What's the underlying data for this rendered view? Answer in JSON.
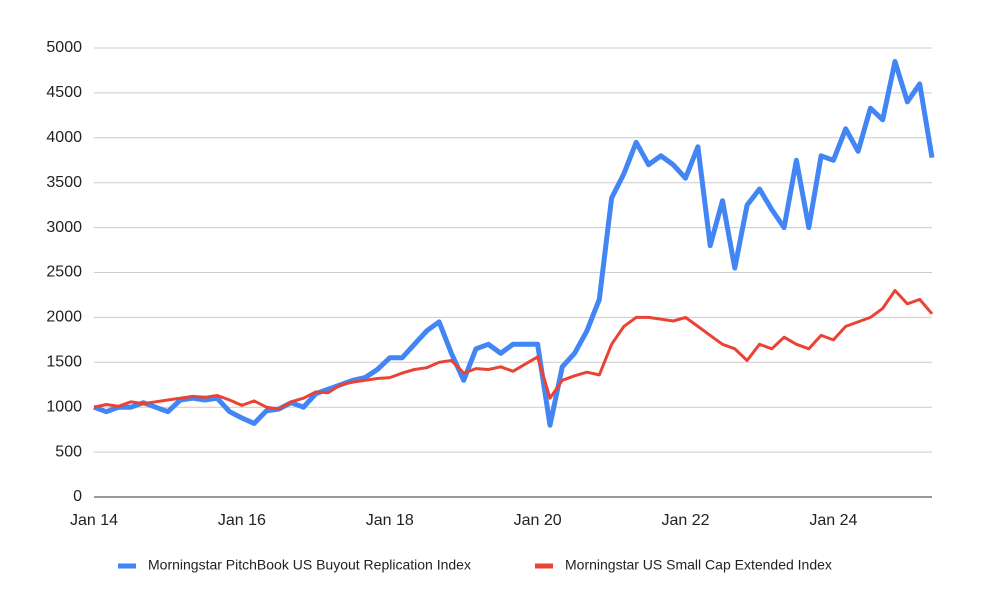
{
  "chart_data": {
    "type": "line",
    "categories": [
      "Jan 14",
      null,
      null,
      null,
      null,
      null,
      null,
      null,
      null,
      null,
      null,
      null,
      "Jan 16",
      null,
      null,
      null,
      null,
      null,
      null,
      null,
      null,
      null,
      null,
      null,
      "Jan 18",
      null,
      null,
      null,
      null,
      null,
      null,
      null,
      null,
      null,
      null,
      null,
      "Jan 20",
      null,
      null,
      null,
      null,
      null,
      null,
      null,
      null,
      null,
      null,
      null,
      "Jan 22",
      null,
      null,
      null,
      null,
      null,
      null,
      null,
      null,
      null,
      null,
      null,
      "Jan 24",
      null,
      null,
      null,
      null,
      null,
      null,
      null,
      null
    ],
    "series": [
      {
        "name": "Morningstar PitchBook US Buyout Replication Index",
        "color": "#4285f4",
        "values": [
          1000,
          950,
          1000,
          1000,
          1050,
          1000,
          950,
          1080,
          1100,
          1080,
          1100,
          950,
          880,
          820,
          960,
          980,
          1050,
          1000,
          1150,
          1200,
          1250,
          1300,
          1330,
          1420,
          1550,
          1550,
          1700,
          1850,
          1950,
          1600,
          1300,
          1650,
          1700,
          1600,
          1700,
          1700,
          1700,
          800,
          1450,
          1600,
          1850,
          2200,
          3330,
          3600,
          3950,
          3700,
          3800,
          3700,
          3550,
          3900,
          2800,
          3300,
          2550,
          3250,
          3430,
          3200,
          3000,
          3750,
          3000,
          3800,
          3750,
          4100,
          3850,
          4330,
          4200,
          4850,
          4400,
          4600,
          3780
        ]
      },
      {
        "name": "Morningstar US Small Cap Extended Index",
        "color": "#ea4335",
        "values": [
          1000,
          1030,
          1010,
          1060,
          1040,
          1060,
          1080,
          1100,
          1120,
          1110,
          1130,
          1080,
          1020,
          1070,
          1000,
          980,
          1060,
          1100,
          1170,
          1160,
          1250,
          1280,
          1300,
          1320,
          1330,
          1380,
          1420,
          1440,
          1500,
          1520,
          1380,
          1430,
          1420,
          1450,
          1400,
          1480,
          1560,
          1100,
          1300,
          1350,
          1390,
          1360,
          1700,
          1900,
          2000,
          2000,
          1980,
          1960,
          2000,
          1900,
          1800,
          1700,
          1650,
          1520,
          1700,
          1650,
          1780,
          1700,
          1650,
          1800,
          1750,
          1900,
          1950,
          2000,
          2100,
          2300,
          2150,
          2200,
          2040
        ]
      }
    ],
    "ylim": [
      0,
      5000
    ],
    "yticks": [
      0,
      500,
      1000,
      1500,
      2000,
      2500,
      3000,
      3500,
      4000,
      4500,
      5000
    ],
    "grid": true,
    "legend": "bottom"
  }
}
